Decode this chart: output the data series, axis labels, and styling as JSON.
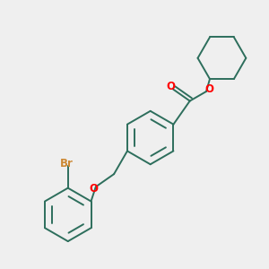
{
  "bg_color": "#efefef",
  "bond_color": "#2d6e5c",
  "o_color": "#ff0000",
  "br_color": "#cc8833",
  "bond_width": 1.4,
  "dbo": 0.055,
  "font_size": 8.5,
  "fig_size": [
    3.0,
    3.0
  ],
  "xlim": [
    0.0,
    4.2
  ],
  "ylim": [
    0.0,
    4.2
  ]
}
